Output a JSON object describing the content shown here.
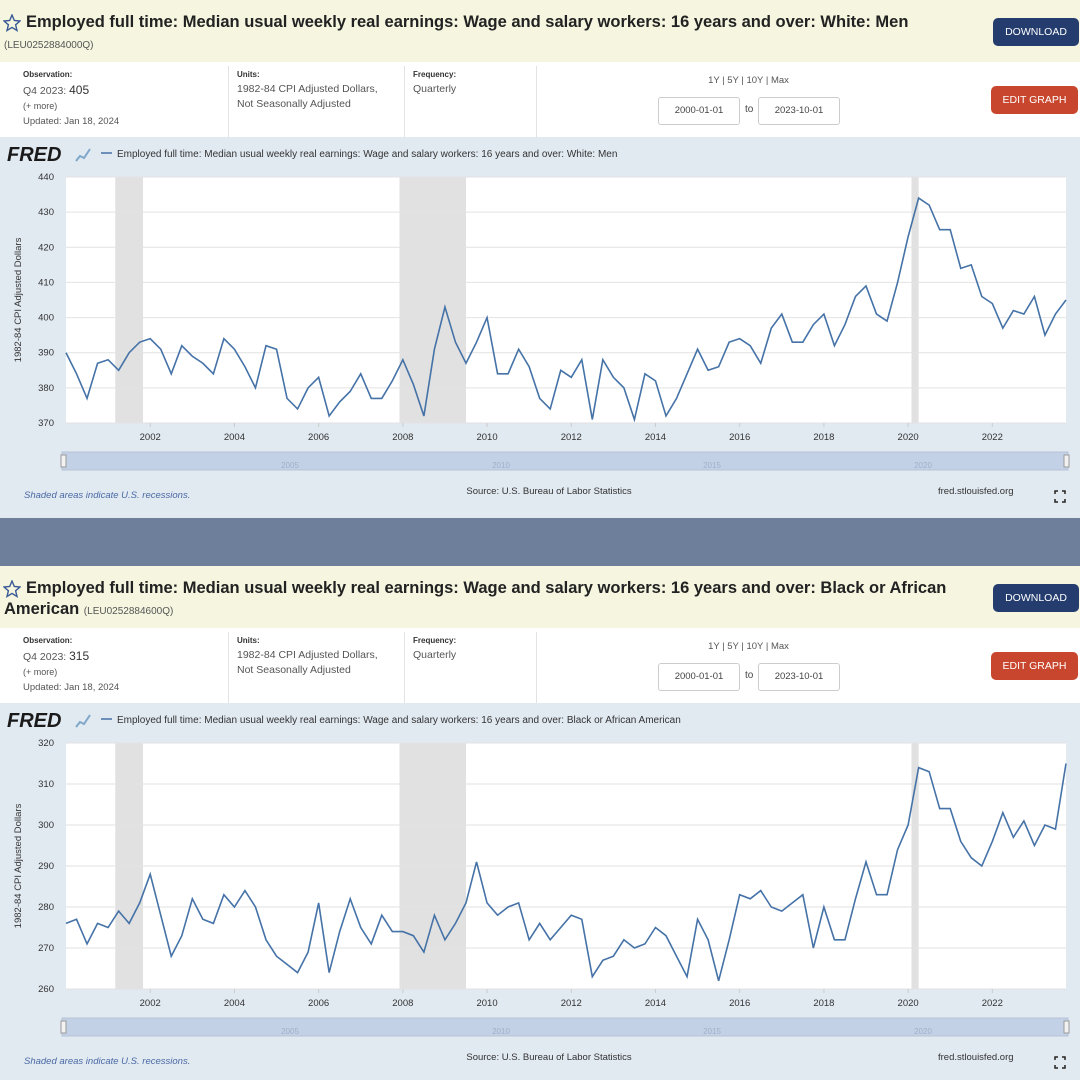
{
  "panels": [
    {
      "header": {
        "title": "Employed full time: Median usual weekly real earnings: Wage and salary workers: 16 years and over: White: Men",
        "series_id": "(LEU0252884000Q)"
      },
      "buttons": {
        "download": "DOWNLOAD",
        "edit": "EDIT GRAPH"
      },
      "info": {
        "observation_label": "Observation:",
        "observation_period": "Q4 2023:",
        "observation_value": "405",
        "more": "(+ more)",
        "updated": "Updated: Jan 18, 2024",
        "units_label": "Units:",
        "units": [
          "1982-84 CPI Adjusted Dollars,",
          "Not Seasonally Adjusted"
        ],
        "frequency_label": "Frequency:",
        "frequency": "Quarterly",
        "ranges": "1Y | 5Y | 10Y | Max",
        "start": "2000-01-01",
        "to": "to",
        "end": "2023-10-01"
      },
      "logo": "FRED",
      "navigator_labels": [
        "2005",
        "2010",
        "2015",
        "2020"
      ],
      "footer": {
        "recessions": "Shaded areas indicate U.S. recessions.",
        "source": "Source: U.S. Bureau of Labor Statistics",
        "site": "fred.stlouisfed.org"
      }
    },
    {
      "header": {
        "title": "Employed full time: Median usual weekly real earnings: Wage and salary workers: 16 years and over: Black or African American",
        "series_id": "(LEU0252884600Q)"
      },
      "buttons": {
        "download": "DOWNLOAD",
        "edit": "EDIT GRAPH"
      },
      "info": {
        "observation_label": "Observation:",
        "observation_period": "Q4 2023:",
        "observation_value": "315",
        "more": "(+ more)",
        "updated": "Updated: Jan 18, 2024",
        "units_label": "Units:",
        "units": [
          "1982-84 CPI Adjusted Dollars,",
          "Not Seasonally Adjusted"
        ],
        "frequency_label": "Frequency:",
        "frequency": "Quarterly",
        "ranges": "1Y | 5Y | 10Y | Max",
        "start": "2000-01-01",
        "to": "to",
        "end": "2023-10-01"
      },
      "logo": "FRED",
      "navigator_labels": [
        "2005",
        "2010",
        "2015",
        "2020"
      ],
      "footer": {
        "recessions": "Shaded areas indicate U.S. recessions.",
        "source": "Source: U.S. Bureau of Labor Statistics",
        "site": "fred.stlouisfed.org"
      }
    }
  ],
  "chart_data": [
    {
      "type": "line",
      "ylabel": "1982-84 CPI Adjusted Dollars",
      "grid": true,
      "x": [
        2000,
        2000.25,
        2000.5,
        2000.75,
        2001,
        2001.25,
        2001.5,
        2001.75,
        2002,
        2002.25,
        2002.5,
        2002.75,
        2003,
        2003.25,
        2003.5,
        2003.75,
        2004,
        2004.25,
        2004.5,
        2004.75,
        2005,
        2005.25,
        2005.5,
        2005.75,
        2006,
        2006.25,
        2006.5,
        2006.75,
        2007,
        2007.25,
        2007.5,
        2007.75,
        2008,
        2008.25,
        2008.5,
        2008.75,
        2009,
        2009.25,
        2009.5,
        2009.75,
        2010,
        2010.25,
        2010.5,
        2010.75,
        2011,
        2011.25,
        2011.5,
        2011.75,
        2012,
        2012.25,
        2012.5,
        2012.75,
        2013,
        2013.25,
        2013.5,
        2013.75,
        2014,
        2014.25,
        2014.5,
        2014.75,
        2015,
        2015.25,
        2015.5,
        2015.75,
        2016,
        2016.25,
        2016.5,
        2016.75,
        2017,
        2017.25,
        2017.5,
        2017.75,
        2018,
        2018.25,
        2018.5,
        2018.75,
        2019,
        2019.25,
        2019.5,
        2019.75,
        2020,
        2020.25,
        2020.5,
        2020.75,
        2021,
        2021.25,
        2021.5,
        2021.75,
        2022,
        2022.25,
        2022.5,
        2022.75,
        2023,
        2023.25,
        2023.5,
        2023.75
      ],
      "series": [
        {
          "name": "Employed full time: Median usual weekly real earnings: Wage and salary workers: 16 years and over: White: Men",
          "color": "#4572a7",
          "values": [
            390,
            384,
            377,
            387,
            388,
            385,
            390,
            393,
            394,
            391,
            384,
            392,
            389,
            387,
            384,
            394,
            391,
            386,
            380,
            392,
            391,
            377,
            374,
            380,
            383,
            372,
            376,
            379,
            384,
            377,
            377,
            382,
            388,
            381,
            372,
            391,
            403,
            393,
            387,
            393,
            400,
            384,
            384,
            391,
            386,
            377,
            374,
            385,
            383,
            388,
            371,
            388,
            383,
            380,
            371,
            384,
            382,
            372,
            377,
            384,
            391,
            385,
            386,
            393,
            394,
            392,
            387,
            397,
            401,
            393,
            393,
            398,
            401,
            392,
            398,
            406,
            409,
            401,
            399,
            410,
            423,
            434,
            432,
            425,
            425,
            414,
            415,
            406,
            404,
            397,
            402,
            401,
            406,
            395,
            401,
            405
          ]
        }
      ],
      "xlim": [
        2000,
        2023.75
      ],
      "xticks": [
        2002,
        2004,
        2006,
        2008,
        2010,
        2012,
        2014,
        2016,
        2018,
        2020,
        2022
      ],
      "ylim": [
        370,
        440
      ],
      "yticks": [
        370,
        380,
        390,
        400,
        410,
        420,
        430,
        440
      ],
      "recessions": [
        [
          2001.17,
          2001.83
        ],
        [
          2007.92,
          2009.5
        ],
        [
          2020.08,
          2020.25
        ]
      ]
    },
    {
      "type": "line",
      "ylabel": "1982-84 CPI Adjusted Dollars",
      "grid": true,
      "x": [
        2000,
        2000.25,
        2000.5,
        2000.75,
        2001,
        2001.25,
        2001.5,
        2001.75,
        2002,
        2002.25,
        2002.5,
        2002.75,
        2003,
        2003.25,
        2003.5,
        2003.75,
        2004,
        2004.25,
        2004.5,
        2004.75,
        2005,
        2005.25,
        2005.5,
        2005.75,
        2006,
        2006.25,
        2006.5,
        2006.75,
        2007,
        2007.25,
        2007.5,
        2007.75,
        2008,
        2008.25,
        2008.5,
        2008.75,
        2009,
        2009.25,
        2009.5,
        2009.75,
        2010,
        2010.25,
        2010.5,
        2010.75,
        2011,
        2011.25,
        2011.5,
        2011.75,
        2012,
        2012.25,
        2012.5,
        2012.75,
        2013,
        2013.25,
        2013.5,
        2013.75,
        2014,
        2014.25,
        2014.5,
        2014.75,
        2015,
        2015.25,
        2015.5,
        2015.75,
        2016,
        2016.25,
        2016.5,
        2016.75,
        2017,
        2017.25,
        2017.5,
        2017.75,
        2018,
        2018.25,
        2018.5,
        2018.75,
        2019,
        2019.25,
        2019.5,
        2019.75,
        2020,
        2020.25,
        2020.5,
        2020.75,
        2021,
        2021.25,
        2021.5,
        2021.75,
        2022,
        2022.25,
        2022.5,
        2022.75,
        2023,
        2023.25,
        2023.5,
        2023.75
      ],
      "series": [
        {
          "name": "Employed full time: Median usual weekly real earnings: Wage and salary workers: 16 years and over: Black or African American",
          "color": "#4572a7",
          "values": [
            276,
            277,
            271,
            276,
            275,
            279,
            276,
            281,
            288,
            278,
            268,
            273,
            282,
            277,
            276,
            283,
            280,
            284,
            280,
            272,
            268,
            266,
            264,
            269,
            281,
            264,
            274,
            282,
            275,
            271,
            278,
            274,
            274,
            273,
            269,
            278,
            272,
            276,
            281,
            291,
            281,
            278,
            280,
            281,
            272,
            276,
            272,
            275,
            278,
            277,
            263,
            267,
            268,
            272,
            270,
            271,
            275,
            273,
            268,
            263,
            277,
            272,
            262,
            272,
            283,
            282,
            284,
            280,
            279,
            281,
            283,
            270,
            280,
            272,
            272,
            282,
            291,
            283,
            283,
            294,
            300,
            314,
            313,
            304,
            304,
            296,
            292,
            290,
            296,
            303,
            297,
            301,
            295,
            300,
            299,
            315
          ]
        }
      ],
      "xlim": [
        2000,
        2023.75
      ],
      "xticks": [
        2002,
        2004,
        2006,
        2008,
        2010,
        2012,
        2014,
        2016,
        2018,
        2020,
        2022
      ],
      "ylim": [
        260,
        320
      ],
      "yticks": [
        260,
        270,
        280,
        290,
        300,
        310,
        320
      ],
      "recessions": [
        [
          2001.17,
          2001.83
        ],
        [
          2007.92,
          2009.5
        ],
        [
          2020.08,
          2020.25
        ]
      ]
    }
  ]
}
